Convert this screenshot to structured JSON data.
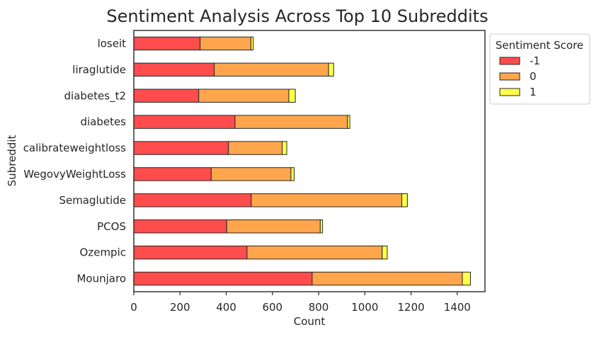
{
  "chart_data": {
    "type": "bar",
    "orientation": "horizontal",
    "stacked": true,
    "title": "Sentiment Analysis Across Top 10 Subreddits",
    "xlabel": "Count",
    "ylabel": "Subreddit",
    "xlim": [
      0,
      1520
    ],
    "xticks": [
      0,
      200,
      400,
      600,
      800,
      1000,
      1200,
      1400
    ],
    "grid": false,
    "legend": {
      "title": "Sentiment Score",
      "placement": "outside-top-right"
    },
    "categories": [
      "loseit",
      "liraglutide",
      "diabetes_t2",
      "diabetes",
      "calibrateweightloss",
      "WegovyWeightLoss",
      "Semaglutide",
      "PCOS",
      "Ozempic",
      "Mounjaro"
    ],
    "series": [
      {
        "name": "-1",
        "color": "#ff4d4d",
        "values": [
          287,
          348,
          281,
          438,
          410,
          335,
          508,
          402,
          490,
          772
        ]
      },
      {
        "name": "0",
        "color": "#ffa64d",
        "values": [
          220,
          495,
          390,
          487,
          232,
          345,
          652,
          405,
          585,
          650
        ]
      },
      {
        "name": "1",
        "color": "#ffff4d",
        "values": [
          10,
          22,
          28,
          10,
          20,
          14,
          24,
          10,
          22,
          35
        ]
      }
    ]
  }
}
